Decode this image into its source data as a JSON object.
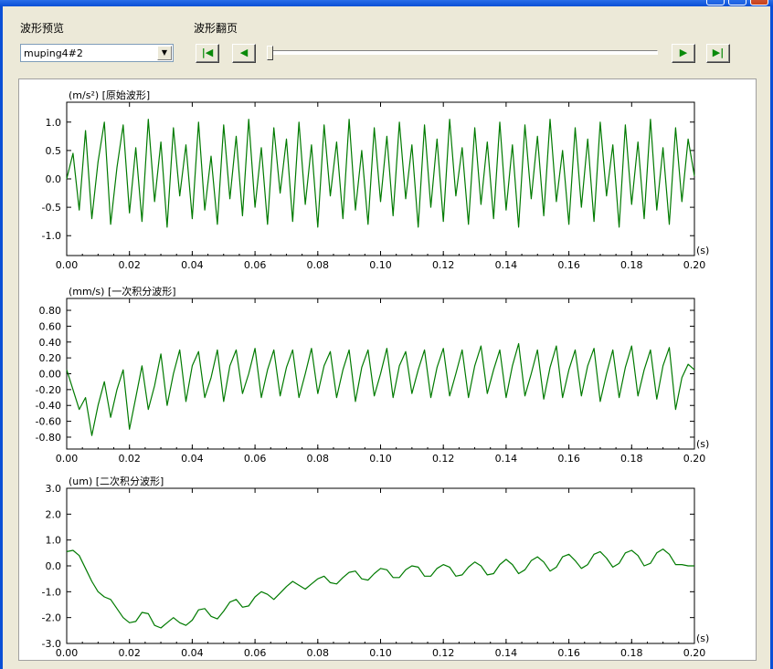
{
  "window": {
    "buttons": [
      "minimize",
      "maximize",
      "close"
    ]
  },
  "controls": {
    "preview_label": "波形预览",
    "page_label": "波形翻页",
    "select_value": "muping4#2",
    "nav": {
      "first_icon": "skip-first-icon",
      "prev_icon": "step-back-icon",
      "next_icon": "step-forward-icon",
      "last_icon": "skip-last-icon"
    },
    "slider_position": 0.0
  },
  "chart_data": [
    {
      "type": "line",
      "title": "(m/s²) [原始波形]",
      "xunit": "(s)",
      "xlim": [
        0.0,
        0.2
      ],
      "ylim": [
        -1.35,
        1.35
      ],
      "x_ticks": [
        "0.00",
        "0.02",
        "0.04",
        "0.06",
        "0.08",
        "0.10",
        "0.12",
        "0.14",
        "0.16",
        "0.18",
        "0.20"
      ],
      "y_ticks": [
        {
          "v": 1.0,
          "label": "1.0"
        },
        {
          "v": 0.5,
          "label": "0.5"
        },
        {
          "v": 0.0,
          "label": "0.0"
        },
        {
          "v": -0.5,
          "label": "-0.5"
        },
        {
          "v": -1.0,
          "label": "-1.0"
        }
      ],
      "color": "#007a00",
      "series": [
        {
          "x": [
            0.0,
            0.002,
            0.004,
            0.006,
            0.008,
            0.01,
            0.012,
            0.014,
            0.016,
            0.018,
            0.02,
            0.022,
            0.024,
            0.026,
            0.028,
            0.03,
            0.032,
            0.034,
            0.036,
            0.038,
            0.04,
            0.042,
            0.044,
            0.046,
            0.048,
            0.05,
            0.052,
            0.054,
            0.056,
            0.058,
            0.06,
            0.062,
            0.064,
            0.066,
            0.068,
            0.07,
            0.072,
            0.074,
            0.076,
            0.078,
            0.08,
            0.082,
            0.084,
            0.086,
            0.088,
            0.09,
            0.092,
            0.094,
            0.096,
            0.098,
            0.1,
            0.102,
            0.104,
            0.106,
            0.108,
            0.11,
            0.112,
            0.114,
            0.116,
            0.118,
            0.12,
            0.122,
            0.124,
            0.126,
            0.128,
            0.13,
            0.132,
            0.134,
            0.136,
            0.138,
            0.14,
            0.142,
            0.144,
            0.146,
            0.148,
            0.15,
            0.152,
            0.154,
            0.156,
            0.158,
            0.16,
            0.162,
            0.164,
            0.166,
            0.168,
            0.17,
            0.172,
            0.174,
            0.176,
            0.178,
            0.18,
            0.182,
            0.184,
            0.186,
            0.188,
            0.19,
            0.192,
            0.194,
            0.196,
            0.198,
            0.2
          ],
          "values": [
            0.0,
            0.45,
            -0.55,
            0.85,
            -0.7,
            0.3,
            1.0,
            -0.8,
            0.2,
            0.95,
            -0.6,
            0.55,
            -0.75,
            1.05,
            -0.4,
            0.65,
            -0.85,
            0.9,
            -0.3,
            0.6,
            -0.7,
            1.0,
            -0.55,
            0.4,
            -0.8,
            0.95,
            -0.35,
            0.75,
            -0.65,
            1.05,
            -0.5,
            0.55,
            -0.8,
            0.9,
            -0.25,
            0.7,
            -0.75,
            1.0,
            -0.45,
            0.6,
            -0.85,
            0.95,
            -0.3,
            0.65,
            -0.7,
            1.05,
            -0.55,
            0.5,
            -0.8,
            0.9,
            -0.4,
            0.75,
            -0.65,
            1.0,
            -0.35,
            0.6,
            -0.85,
            0.95,
            -0.5,
            0.7,
            -0.75,
            1.05,
            -0.3,
            0.55,
            -0.8,
            0.9,
            -0.45,
            0.65,
            -0.7,
            1.0,
            -0.55,
            0.6,
            -0.85,
            0.95,
            -0.35,
            0.75,
            -0.65,
            1.05,
            -0.4,
            0.5,
            -0.8,
            0.9,
            -0.5,
            0.7,
            -0.75,
            1.0,
            -0.3,
            0.6,
            -0.85,
            0.95,
            -0.45,
            0.65,
            -0.7,
            1.05,
            -0.55,
            0.55,
            -0.8,
            0.9,
            -0.4,
            0.7,
            0.05
          ]
        }
      ]
    },
    {
      "type": "line",
      "title": "(mm/s) [一次积分波形]",
      "xunit": "(s)",
      "xlim": [
        0.0,
        0.2
      ],
      "ylim": [
        -0.95,
        0.95
      ],
      "x_ticks": [
        "0.00",
        "0.02",
        "0.04",
        "0.06",
        "0.08",
        "0.10",
        "0.12",
        "0.14",
        "0.16",
        "0.18",
        "0.20"
      ],
      "y_ticks": [
        {
          "v": 0.8,
          "label": "0.80"
        },
        {
          "v": 0.6,
          "label": "0.60"
        },
        {
          "v": 0.4,
          "label": "0.40"
        },
        {
          "v": 0.2,
          "label": "0.20"
        },
        {
          "v": 0.0,
          "label": "0.00"
        },
        {
          "v": -0.2,
          "label": "-0.20"
        },
        {
          "v": -0.4,
          "label": "-0.40"
        },
        {
          "v": -0.6,
          "label": "-0.60"
        },
        {
          "v": -0.8,
          "label": "-0.80"
        }
      ],
      "color": "#007a00",
      "series": [
        {
          "x": [
            0.0,
            0.002,
            0.004,
            0.006,
            0.008,
            0.01,
            0.012,
            0.014,
            0.016,
            0.018,
            0.02,
            0.022,
            0.024,
            0.026,
            0.028,
            0.03,
            0.032,
            0.034,
            0.036,
            0.038,
            0.04,
            0.042,
            0.044,
            0.046,
            0.048,
            0.05,
            0.052,
            0.054,
            0.056,
            0.058,
            0.06,
            0.062,
            0.064,
            0.066,
            0.068,
            0.07,
            0.072,
            0.074,
            0.076,
            0.078,
            0.08,
            0.082,
            0.084,
            0.086,
            0.088,
            0.09,
            0.092,
            0.094,
            0.096,
            0.098,
            0.1,
            0.102,
            0.104,
            0.106,
            0.108,
            0.11,
            0.112,
            0.114,
            0.116,
            0.118,
            0.12,
            0.122,
            0.124,
            0.126,
            0.128,
            0.13,
            0.132,
            0.134,
            0.136,
            0.138,
            0.14,
            0.142,
            0.144,
            0.146,
            0.148,
            0.15,
            0.152,
            0.154,
            0.156,
            0.158,
            0.16,
            0.162,
            0.164,
            0.166,
            0.168,
            0.17,
            0.172,
            0.174,
            0.176,
            0.178,
            0.18,
            0.182,
            0.184,
            0.186,
            0.188,
            0.19,
            0.192,
            0.194,
            0.196,
            0.198,
            0.2
          ],
          "values": [
            0.05,
            -0.2,
            -0.45,
            -0.3,
            -0.78,
            -0.4,
            -0.1,
            -0.55,
            -0.2,
            0.05,
            -0.7,
            -0.3,
            0.1,
            -0.45,
            -0.15,
            0.25,
            -0.4,
            0.0,
            0.3,
            -0.35,
            0.1,
            0.28,
            -0.3,
            -0.05,
            0.3,
            -0.35,
            0.1,
            0.3,
            -0.25,
            0.0,
            0.32,
            -0.3,
            0.05,
            0.3,
            -0.28,
            0.08,
            0.3,
            -0.3,
            0.0,
            0.32,
            -0.25,
            0.1,
            0.28,
            -0.3,
            0.05,
            0.3,
            -0.35,
            0.08,
            0.3,
            -0.28,
            0.0,
            0.32,
            -0.3,
            0.1,
            0.28,
            -0.25,
            0.05,
            0.3,
            -0.3,
            0.08,
            0.32,
            -0.28,
            0.0,
            0.3,
            -0.3,
            0.1,
            0.35,
            -0.25,
            0.05,
            0.3,
            -0.3,
            0.1,
            0.38,
            -0.28,
            0.0,
            0.3,
            -0.32,
            0.08,
            0.35,
            -0.3,
            0.05,
            0.3,
            -0.28,
            0.1,
            0.32,
            -0.35,
            0.0,
            0.3,
            -0.3,
            0.08,
            0.35,
            -0.28,
            0.05,
            0.3,
            -0.32,
            0.1,
            0.33,
            -0.45,
            -0.05,
            0.12,
            0.05
          ]
        }
      ]
    },
    {
      "type": "line",
      "title": "(um) [二次积分波形]",
      "xunit": "(s)",
      "xlim": [
        0.0,
        0.2
      ],
      "ylim": [
        -3.0,
        3.0
      ],
      "x_ticks": [
        "0.00",
        "0.02",
        "0.04",
        "0.06",
        "0.08",
        "0.10",
        "0.12",
        "0.14",
        "0.16",
        "0.18",
        "0.20"
      ],
      "y_ticks": [
        {
          "v": 3.0,
          "label": "3.0"
        },
        {
          "v": 2.0,
          "label": "2.0"
        },
        {
          "v": 1.0,
          "label": "1.0"
        },
        {
          "v": 0.0,
          "label": "0.0"
        },
        {
          "v": -1.0,
          "label": "-1.0"
        },
        {
          "v": -2.0,
          "label": "-2.0"
        },
        {
          "v": -3.0,
          "label": "-3.0"
        }
      ],
      "color": "#007a00",
      "series": [
        {
          "x": [
            0.0,
            0.002,
            0.004,
            0.006,
            0.008,
            0.01,
            0.012,
            0.014,
            0.016,
            0.018,
            0.02,
            0.022,
            0.024,
            0.026,
            0.028,
            0.03,
            0.032,
            0.034,
            0.036,
            0.038,
            0.04,
            0.042,
            0.044,
            0.046,
            0.048,
            0.05,
            0.052,
            0.054,
            0.056,
            0.058,
            0.06,
            0.062,
            0.064,
            0.066,
            0.068,
            0.07,
            0.072,
            0.074,
            0.076,
            0.078,
            0.08,
            0.082,
            0.084,
            0.086,
            0.088,
            0.09,
            0.092,
            0.094,
            0.096,
            0.098,
            0.1,
            0.102,
            0.104,
            0.106,
            0.108,
            0.11,
            0.112,
            0.114,
            0.116,
            0.118,
            0.12,
            0.122,
            0.124,
            0.126,
            0.128,
            0.13,
            0.132,
            0.134,
            0.136,
            0.138,
            0.14,
            0.142,
            0.144,
            0.146,
            0.148,
            0.15,
            0.152,
            0.154,
            0.156,
            0.158,
            0.16,
            0.162,
            0.164,
            0.166,
            0.168,
            0.17,
            0.172,
            0.174,
            0.176,
            0.178,
            0.18,
            0.182,
            0.184,
            0.186,
            0.188,
            0.19,
            0.192,
            0.194,
            0.196,
            0.198,
            0.2
          ],
          "values": [
            0.55,
            0.6,
            0.4,
            -0.1,
            -0.6,
            -1.0,
            -1.2,
            -1.3,
            -1.65,
            -2.0,
            -2.2,
            -2.15,
            -1.8,
            -1.85,
            -2.3,
            -2.4,
            -2.2,
            -2.0,
            -2.2,
            -2.3,
            -2.1,
            -1.7,
            -1.65,
            -1.95,
            -2.05,
            -1.75,
            -1.4,
            -1.3,
            -1.6,
            -1.55,
            -1.2,
            -1.0,
            -1.1,
            -1.3,
            -1.05,
            -0.8,
            -0.6,
            -0.75,
            -0.9,
            -0.7,
            -0.5,
            -0.4,
            -0.65,
            -0.7,
            -0.45,
            -0.25,
            -0.2,
            -0.5,
            -0.55,
            -0.3,
            -0.1,
            -0.15,
            -0.45,
            -0.45,
            -0.15,
            0.0,
            -0.05,
            -0.4,
            -0.4,
            -0.1,
            0.05,
            -0.05,
            -0.4,
            -0.35,
            -0.05,
            0.15,
            0.0,
            -0.35,
            -0.3,
            0.05,
            0.25,
            0.05,
            -0.3,
            -0.15,
            0.2,
            0.35,
            0.15,
            -0.2,
            -0.05,
            0.35,
            0.45,
            0.2,
            -0.1,
            0.05,
            0.45,
            0.55,
            0.3,
            -0.05,
            0.1,
            0.5,
            0.6,
            0.4,
            0.0,
            0.1,
            0.5,
            0.65,
            0.45,
            0.05,
            0.05,
            0.0,
            0.0
          ]
        }
      ]
    }
  ]
}
